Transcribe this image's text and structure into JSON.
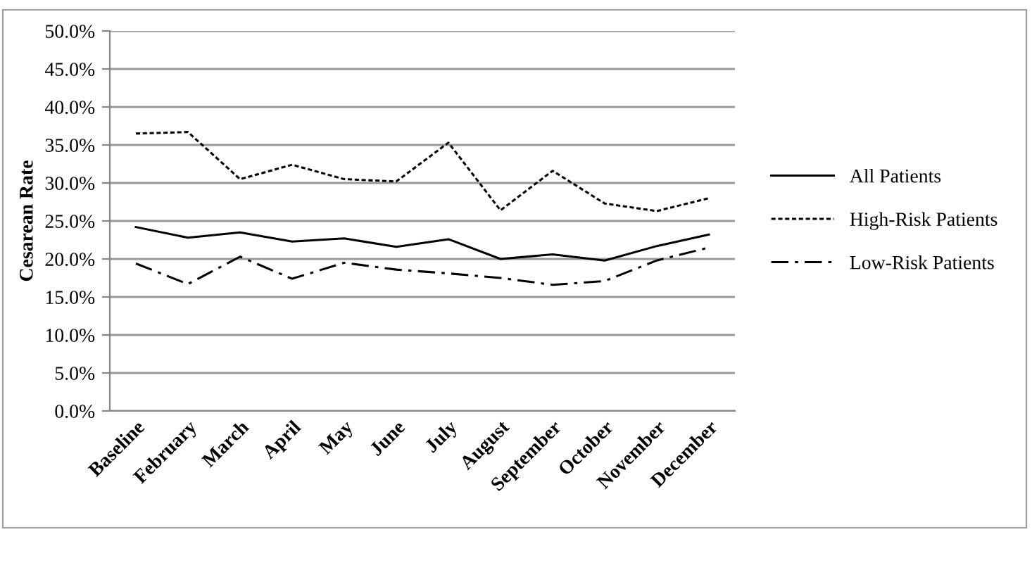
{
  "chart_data": {
    "type": "line",
    "ylabel": "Cesarean Rate",
    "categories": [
      "Baseline",
      "February",
      "March",
      "April",
      "May",
      "June",
      "July",
      "August",
      "September",
      "October",
      "November",
      "December"
    ],
    "series": [
      {
        "name": "All Patients",
        "color": "#000000",
        "line_style": "solid",
        "values": [
          24.2,
          22.8,
          23.5,
          22.3,
          22.7,
          21.6,
          22.6,
          20.0,
          20.6,
          19.8,
          21.7,
          23.2
        ]
      },
      {
        "name": "High-Risk Patients",
        "color": "#000000",
        "line_style": "dotted",
        "values": [
          36.5,
          36.7,
          30.5,
          32.4,
          30.5,
          30.2,
          35.3,
          26.4,
          31.6,
          27.3,
          26.3,
          28.0
        ]
      },
      {
        "name": "Low-Risk Patients",
        "color": "#000000",
        "line_style": "dashdot",
        "values": [
          19.4,
          16.7,
          20.3,
          17.4,
          19.5,
          18.6,
          18.1,
          17.5,
          16.6,
          17.1,
          19.8,
          21.5
        ]
      }
    ],
    "ylim": [
      0,
      50
    ],
    "yticks": [
      {
        "value": 0,
        "label": "0.0%"
      },
      {
        "value": 5,
        "label": "5.0%"
      },
      {
        "value": 10,
        "label": "10.0%"
      },
      {
        "value": 15,
        "label": "15.0%"
      },
      {
        "value": 20,
        "label": "20.0%"
      },
      {
        "value": 25,
        "label": "25.0%"
      },
      {
        "value": 30,
        "label": "30.0%"
      },
      {
        "value": 35,
        "label": "35.0%"
      },
      {
        "value": 40,
        "label": "40.0%"
      },
      {
        "value": 45,
        "label": "45.0%"
      },
      {
        "value": 50,
        "label": "50.0%"
      }
    ],
    "grid": "y",
    "legend": "right",
    "marker": "none"
  }
}
